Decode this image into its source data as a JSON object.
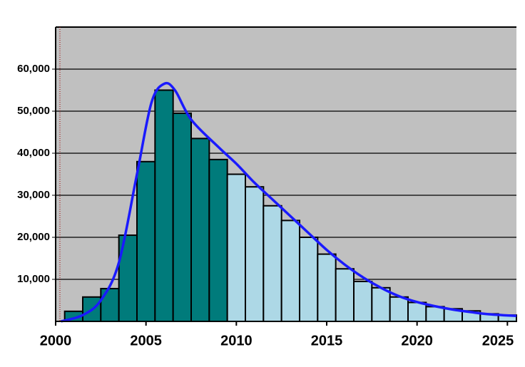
{
  "chart_data": {
    "type": "histogram",
    "bins": [
      2000.5,
      2001.5,
      2002.5,
      2003.5,
      2004.5,
      2005.5,
      2006.5,
      2007.5,
      2008.5,
      2009.5,
      2010.5,
      2011.5,
      2012.5,
      2013.5,
      2014.5,
      2015.5,
      2016.5,
      2017.5,
      2018.5,
      2019.5,
      2020.5,
      2021.5,
      2022.5,
      2023.5,
      2024.5,
      2025.5
    ],
    "values": [
      2400,
      5800,
      7800,
      20500,
      38000,
      55000,
      49500,
      43500,
      38500,
      35000,
      32000,
      27500,
      24000,
      20000,
      16000,
      12500,
      9500,
      8000,
      5800,
      4500,
      3500,
      3000,
      2500,
      1800,
      1500
    ],
    "bar_colors": [
      "#007b7b",
      "#007b7b",
      "#007b7b",
      "#007b7b",
      "#007b7b",
      "#007b7b",
      "#007b7b",
      "#007b7b",
      "#007b7b",
      "#add8e6",
      "#add8e6",
      "#add8e6",
      "#add8e6",
      "#add8e6",
      "#add8e6",
      "#add8e6",
      "#add8e6",
      "#add8e6",
      "#add8e6",
      "#add8e6",
      "#add8e6",
      "#add8e6",
      "#add8e6",
      "#add8e6",
      "#add8e6"
    ],
    "curve": {
      "color": "#1a1aff",
      "x": [
        2000.3,
        2001.5,
        2002.5,
        2003.5,
        2004.5,
        2005.3,
        2006,
        2006.6,
        2007.5,
        2009,
        2010,
        2011,
        2012,
        2013,
        2014,
        2015,
        2016,
        2017,
        2018,
        2019,
        2020,
        2021,
        2022,
        2023,
        2024,
        2025.5
      ],
      "values": [
        0,
        1500,
        5000,
        14000,
        35000,
        52000,
        56500,
        55000,
        48000,
        41500,
        37500,
        33000,
        29000,
        25000,
        21000,
        17000,
        13500,
        10500,
        8000,
        6000,
        4600,
        3600,
        2800,
        2200,
        1700,
        1300
      ]
    },
    "xlim": [
      2000,
      2025.5
    ],
    "xticks": [
      2000,
      2005,
      2010,
      2015,
      2020,
      2025
    ],
    "ylim": [
      0,
      70000
    ],
    "yticks": [
      {
        "value": 10000,
        "label": "10,000"
      },
      {
        "value": 20000,
        "label": "20,000"
      },
      {
        "value": 30000,
        "label": "30,000"
      },
      {
        "value": 40000,
        "label": "40,000"
      },
      {
        "value": 50000,
        "label": "50,000"
      },
      {
        "value": 60000,
        "label": "60,000"
      }
    ],
    "grid": true,
    "plot_background": "#c0c0c0"
  }
}
